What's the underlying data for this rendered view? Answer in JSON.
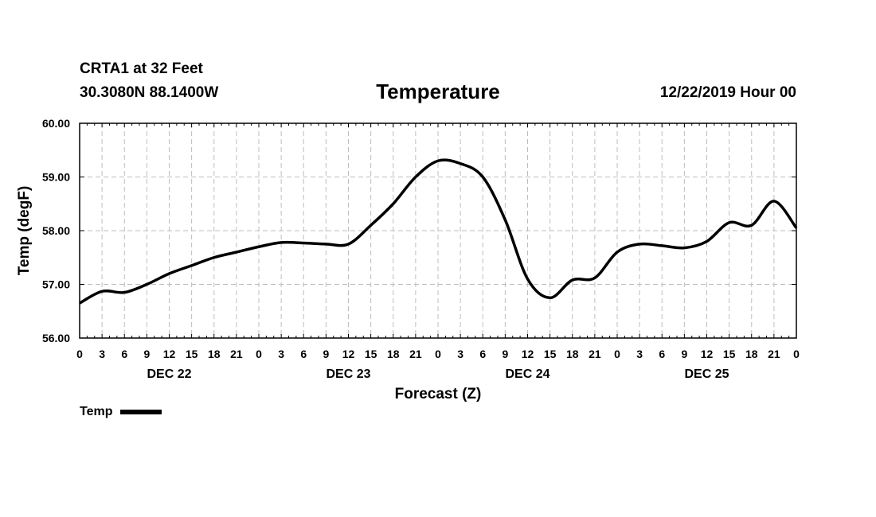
{
  "header": {
    "station": "CRTA1 at 32 Feet",
    "coords": "30.3080N 88.1400W",
    "title": "Temperature",
    "datetime": "12/22/2019 Hour 00"
  },
  "legend": {
    "label": "Temp"
  },
  "chart_data": {
    "type": "line",
    "title": "Temperature",
    "xlabel": "Forecast (Z)",
    "ylabel": "Temp (degF)",
    "ylim": [
      56.0,
      60.0
    ],
    "xlim": [
      0,
      96
    ],
    "grid": true,
    "legend_position": "bottom-left",
    "y_ticks": [
      "56.00",
      "57.00",
      "58.00",
      "59.00",
      "60.00"
    ],
    "x_tick_labels": [
      "0",
      "3",
      "6",
      "9",
      "12",
      "15",
      "18",
      "21",
      "0",
      "3",
      "6",
      "9",
      "12",
      "15",
      "18",
      "21",
      "0",
      "3",
      "6",
      "9",
      "12",
      "15",
      "18",
      "21",
      "0",
      "3",
      "6",
      "9",
      "12",
      "15",
      "18",
      "21",
      "0"
    ],
    "day_labels": [
      {
        "label": "DEC 22",
        "hour": 12
      },
      {
        "label": "DEC 23",
        "hour": 36
      },
      {
        "label": "DEC 24",
        "hour": 60
      },
      {
        "label": "DEC 25",
        "hour": 84
      }
    ],
    "series": [
      {
        "name": "Temp",
        "color": "#000000",
        "x": [
          0,
          3,
          6,
          9,
          12,
          15,
          18,
          21,
          24,
          27,
          30,
          33,
          36,
          39,
          42,
          45,
          48,
          51,
          54,
          57,
          60,
          63,
          66,
          69,
          72,
          75,
          78,
          81,
          84,
          87,
          90,
          93,
          96
        ],
        "y": [
          56.65,
          56.87,
          56.85,
          57.0,
          57.2,
          57.35,
          57.5,
          57.6,
          57.7,
          57.78,
          57.77,
          57.75,
          57.75,
          58.1,
          58.5,
          59.0,
          59.3,
          59.25,
          59.0,
          58.2,
          57.1,
          56.75,
          57.08,
          57.12,
          57.6,
          57.75,
          57.72,
          57.68,
          57.8,
          58.15,
          58.1,
          58.55,
          58.05
        ]
      }
    ]
  }
}
